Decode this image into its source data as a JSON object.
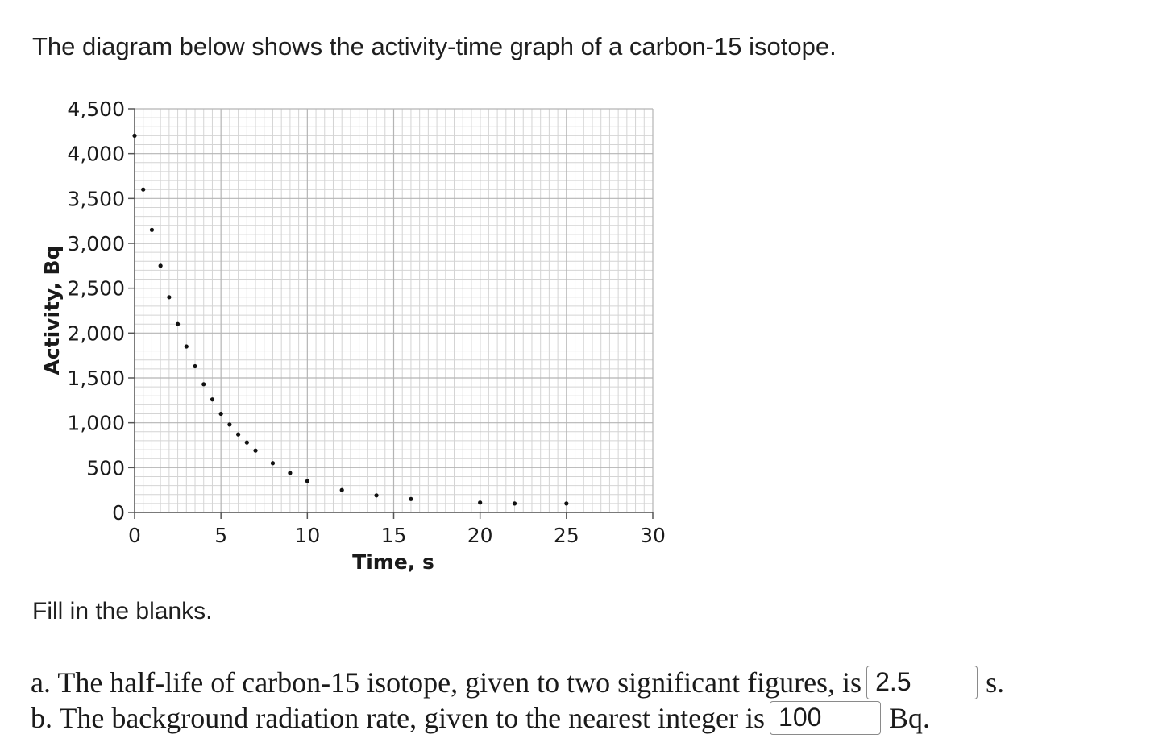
{
  "intro_text": "The diagram below shows the activity-time graph of a carbon-15 isotope.",
  "fill_text": "Fill in the blanks.",
  "questions": {
    "a": {
      "prefix": "a. The half-life of carbon-15 isotope, given to two significant figures, is",
      "answer": "2.5",
      "unit": "s."
    },
    "b": {
      "prefix": "b. The background radiation rate, given to the nearest integer is",
      "answer": "100",
      "unit": "Bq."
    }
  },
  "chart_data": {
    "type": "scatter",
    "xlabel": "Time, s",
    "ylabel": "Activity, Bq",
    "xlim": [
      0,
      30
    ],
    "ylim": [
      0,
      4500
    ],
    "x_ticks": [
      0,
      5,
      10,
      15,
      20,
      25,
      30
    ],
    "x_tick_labels": [
      "0",
      "5",
      "10",
      "15",
      "20",
      "25",
      "30"
    ],
    "y_ticks": [
      0,
      500,
      1000,
      1500,
      2000,
      2500,
      3000,
      3500,
      4000,
      4500
    ],
    "y_tick_labels": [
      "0",
      "500",
      "1,000",
      "1,500",
      "2,000",
      "2,500",
      "3,000",
      "3,500",
      "4,000",
      "4,500"
    ],
    "grid": true,
    "points": [
      {
        "x": 0,
        "y": 4200
      },
      {
        "x": 0.5,
        "y": 3600
      },
      {
        "x": 1,
        "y": 3150
      },
      {
        "x": 1.5,
        "y": 2750
      },
      {
        "x": 2,
        "y": 2400
      },
      {
        "x": 2.5,
        "y": 2100
      },
      {
        "x": 3,
        "y": 1850
      },
      {
        "x": 3.5,
        "y": 1630
      },
      {
        "x": 4,
        "y": 1430
      },
      {
        "x": 4.5,
        "y": 1260
      },
      {
        "x": 5,
        "y": 1100
      },
      {
        "x": 5.5,
        "y": 980
      },
      {
        "x": 6,
        "y": 870
      },
      {
        "x": 6.5,
        "y": 780
      },
      {
        "x": 7,
        "y": 690
      },
      {
        "x": 8,
        "y": 550
      },
      {
        "x": 9,
        "y": 440
      },
      {
        "x": 10,
        "y": 350
      },
      {
        "x": 12,
        "y": 250
      },
      {
        "x": 14,
        "y": 190
      },
      {
        "x": 16,
        "y": 150
      },
      {
        "x": 20,
        "y": 110
      },
      {
        "x": 22,
        "y": 100
      },
      {
        "x": 25,
        "y": 100
      }
    ]
  }
}
